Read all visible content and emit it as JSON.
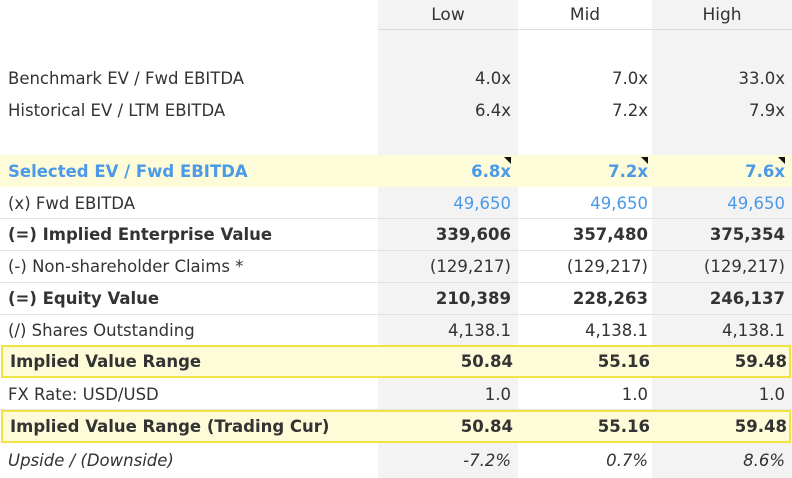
{
  "columns": {
    "low": "Low",
    "mid": "Mid",
    "high": "High"
  },
  "rows": {
    "benchmark": {
      "label": "Benchmark EV / Fwd EBITDA",
      "low": "4.0x",
      "mid": "7.0x",
      "high": "33.0x"
    },
    "historical": {
      "label": "Historical EV / LTM EBITDA",
      "low": "6.4x",
      "mid": "7.2x",
      "high": "7.9x"
    },
    "selected": {
      "label": "Selected EV / Fwd EBITDA",
      "low": "6.8x",
      "mid": "7.2x",
      "high": "7.6x"
    },
    "fwd_ebitda": {
      "label": "(x) Fwd EBITDA",
      "low": "49,650",
      "mid": "49,650",
      "high": "49,650"
    },
    "implied_ev": {
      "label": "(=) Implied Enterprise Value",
      "low": "339,606",
      "mid": "357,480",
      "high": "375,354"
    },
    "claims": {
      "label": "(-) Non-shareholder Claims *",
      "low": "(129,217)",
      "mid": "(129,217)",
      "high": "(129,217)"
    },
    "equity": {
      "label": "(=) Equity Value",
      "low": "210,389",
      "mid": "228,263",
      "high": "246,137"
    },
    "shares": {
      "label": "(/) Shares Outstanding",
      "low": "4,138.1",
      "mid": "4,138.1",
      "high": "4,138.1"
    },
    "range": {
      "label": "Implied Value Range",
      "low": "50.84",
      "mid": "55.16",
      "high": "59.48"
    },
    "fx": {
      "label": "FX Rate: USD/USD",
      "low": "1.0",
      "mid": "1.0",
      "high": "1.0"
    },
    "range_trading": {
      "label": "Implied Value Range (Trading Cur)",
      "low": "50.84",
      "mid": "55.16",
      "high": "59.48"
    },
    "upside": {
      "label": "Upside / (Downside)",
      "low": "-7.2%",
      "mid": "0.7%",
      "high": "8.6%"
    }
  },
  "colors": {
    "input_blue": "#4a9ae8",
    "highlight_fill": "#fefbd8",
    "highlight_border": "#f0e442",
    "shaded_column": "#f3f3f3"
  }
}
